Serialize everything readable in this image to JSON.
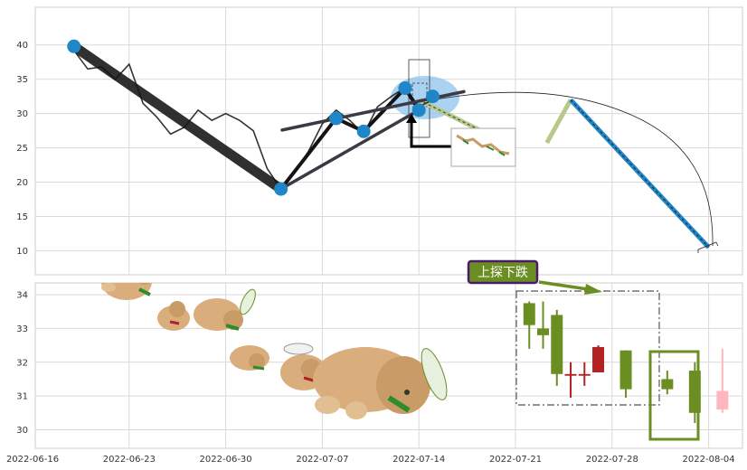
{
  "colors": {
    "panel_border": "#cccccc",
    "grid": "#d9d9d9",
    "price_line": "#333333",
    "pattern_line": "#141414",
    "pattern_line_alt": "#3a3a44",
    "marker": "#1f86c8",
    "highlight": "#8fc4ec",
    "projection_blue": "#1f86c8",
    "projection_olive": "#b7c98a",
    "candle_up": "#6b8e23",
    "candle_down": "#b22222",
    "candle_faded": "#ffb6c1",
    "annotation_bg": "#6b8e23",
    "annotation_border": "#4b1a6b",
    "box_dashdot": "#555555",
    "box_green": "#6b8e23"
  },
  "chart_data": [
    {
      "type": "line",
      "panel": "top",
      "yticks": [
        10,
        15,
        20,
        25,
        30,
        35,
        40
      ],
      "ylim": [
        6.5,
        45.5
      ],
      "grid": true,
      "series": [
        {
          "role": "close-price",
          "x": [
            "2022-06-19",
            "2022-06-20",
            "2022-06-21",
            "2022-06-22",
            "2022-06-23",
            "2022-06-24",
            "2022-06-25",
            "2022-06-26",
            "2022-06-27",
            "2022-06-28",
            "2022-06-29",
            "2022-06-30",
            "2022-07-01",
            "2022-07-02",
            "2022-07-03",
            "2022-07-04",
            "2022-07-05",
            "2022-07-06",
            "2022-07-07",
            "2022-07-08",
            "2022-07-09",
            "2022-07-10",
            "2022-07-11",
            "2022-07-12",
            "2022-07-13",
            "2022-07-14",
            "2022-07-15"
          ],
          "values": [
            39.2,
            36.5,
            36.8,
            35.0,
            37.2,
            31.5,
            29.5,
            27.0,
            28.0,
            30.5,
            29.0,
            30.0,
            29.0,
            27.5,
            22.0,
            19.0,
            21.5,
            24.5,
            28.5,
            30.5,
            29.0,
            27.0,
            31.0,
            32.5,
            33.8,
            31.0,
            32.0
          ]
        }
      ],
      "pattern_points": [
        {
          "x": "2022-06-19",
          "y": 39.8
        },
        {
          "x": "2022-07-04",
          "y": 19.0
        },
        {
          "x": "2022-07-08",
          "y": 29.3
        },
        {
          "x": "2022-07-10",
          "y": 27.4
        },
        {
          "x": "2022-07-13",
          "y": 33.7
        },
        {
          "x": "2022-07-14",
          "y": 30.5
        },
        {
          "x": "2022-07-15",
          "y": 32.5
        }
      ],
      "projection": [
        {
          "x": "2022-07-14",
          "y": 32.0
        },
        {
          "x": "2022-07-20",
          "y": 26.0
        },
        {
          "x": "2022-07-25",
          "y": 32.0
        },
        {
          "x": "2022-08-04",
          "y": 10.5
        }
      ]
    },
    {
      "type": "candlestick",
      "panel": "bottom",
      "yticks": [
        30,
        31,
        32,
        33,
        34
      ],
      "ylim": [
        29.45,
        34.35
      ],
      "grid": true,
      "x_tick_labels": [
        "2022-06-16",
        "2022-06-23",
        "2022-06-30",
        "2022-07-07",
        "2022-07-14",
        "2022-07-21",
        "2022-07-28",
        "2022-08-04"
      ],
      "candles": [
        {
          "x": "2022-07-22",
          "open": 33.1,
          "high": 33.8,
          "low": 32.4,
          "close": 33.75
        },
        {
          "x": "2022-07-23",
          "open": 32.8,
          "high": 33.8,
          "low": 32.4,
          "close": 33.0
        },
        {
          "x": "2022-07-24",
          "open": 31.65,
          "high": 33.55,
          "low": 31.3,
          "close": 33.4
        },
        {
          "x": "2022-07-25",
          "open": 31.65,
          "high": 32.0,
          "low": 30.95,
          "close": 31.6
        },
        {
          "x": "2022-07-26",
          "open": 31.65,
          "high": 32.0,
          "low": 31.3,
          "close": 31.6
        },
        {
          "x": "2022-07-27",
          "open": 32.45,
          "high": 32.5,
          "low": 31.7,
          "close": 31.7
        },
        {
          "x": "2022-07-29",
          "open": 31.2,
          "high": 32.35,
          "low": 30.95,
          "close": 32.35
        },
        {
          "x": "2022-08-01",
          "open": 31.2,
          "high": 31.75,
          "low": 31.05,
          "close": 31.5
        },
        {
          "x": "2022-08-03",
          "open": 30.5,
          "high": 32.0,
          "low": 30.2,
          "close": 31.75
        },
        {
          "x": "2022-08-05",
          "open": 31.15,
          "high": 32.4,
          "low": 30.5,
          "close": 30.6,
          "faded": true
        }
      ],
      "annotation": "上探下跌"
    }
  ]
}
